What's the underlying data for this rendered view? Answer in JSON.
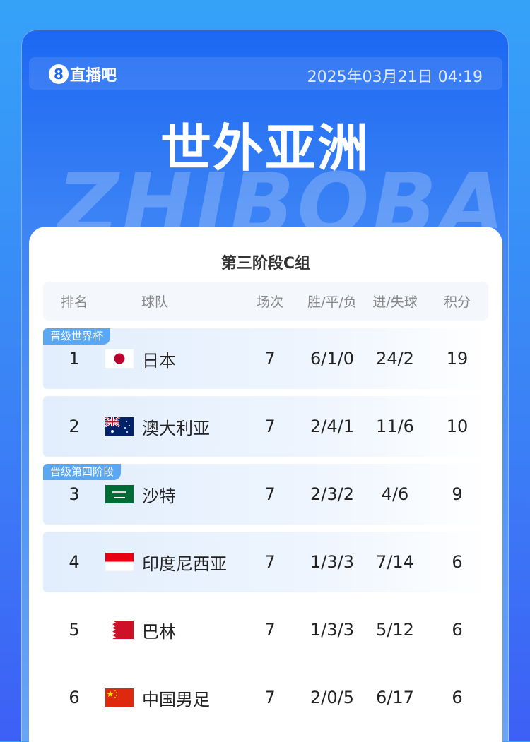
{
  "header": {
    "logo_mark": "8",
    "logo_text": "直播吧",
    "datetime": "2025年03月21日 04:19",
    "title": "世外亚洲",
    "watermark": "ZHIBOBA"
  },
  "table": {
    "subtitle": "第三阶段C组",
    "columns": [
      "排名",
      "球队",
      "场次",
      "胜/平/负",
      "进/失球",
      "积分"
    ],
    "rows": [
      {
        "rank": "1",
        "team": "日本",
        "flag": "japan",
        "played": "7",
        "wdl": "6/1/0",
        "goals": "24/2",
        "points": "19",
        "badge": "晋级世界杯",
        "highlight": true
      },
      {
        "rank": "2",
        "team": "澳大利亚",
        "flag": "australia",
        "played": "7",
        "wdl": "2/4/1",
        "goals": "11/6",
        "points": "10",
        "badge": "",
        "highlight": true
      },
      {
        "rank": "3",
        "team": "沙特",
        "flag": "saudi-arabia",
        "played": "7",
        "wdl": "2/3/2",
        "goals": "4/6",
        "points": "9",
        "badge": "晋级第四阶段",
        "highlight": true
      },
      {
        "rank": "4",
        "team": "印度尼西亚",
        "flag": "indonesia",
        "played": "7",
        "wdl": "1/3/3",
        "goals": "7/14",
        "points": "6",
        "badge": "",
        "highlight": true
      },
      {
        "rank": "5",
        "team": "巴林",
        "flag": "bahrain",
        "played": "7",
        "wdl": "1/3/3",
        "goals": "5/12",
        "points": "6",
        "badge": "",
        "highlight": false
      },
      {
        "rank": "6",
        "team": "中国男足",
        "flag": "china",
        "played": "7",
        "wdl": "2/0/5",
        "goals": "6/17",
        "points": "6",
        "badge": "",
        "highlight": false
      }
    ]
  },
  "colors": {
    "accent": "#1c68f3",
    "badge": "#5aa7f4"
  }
}
